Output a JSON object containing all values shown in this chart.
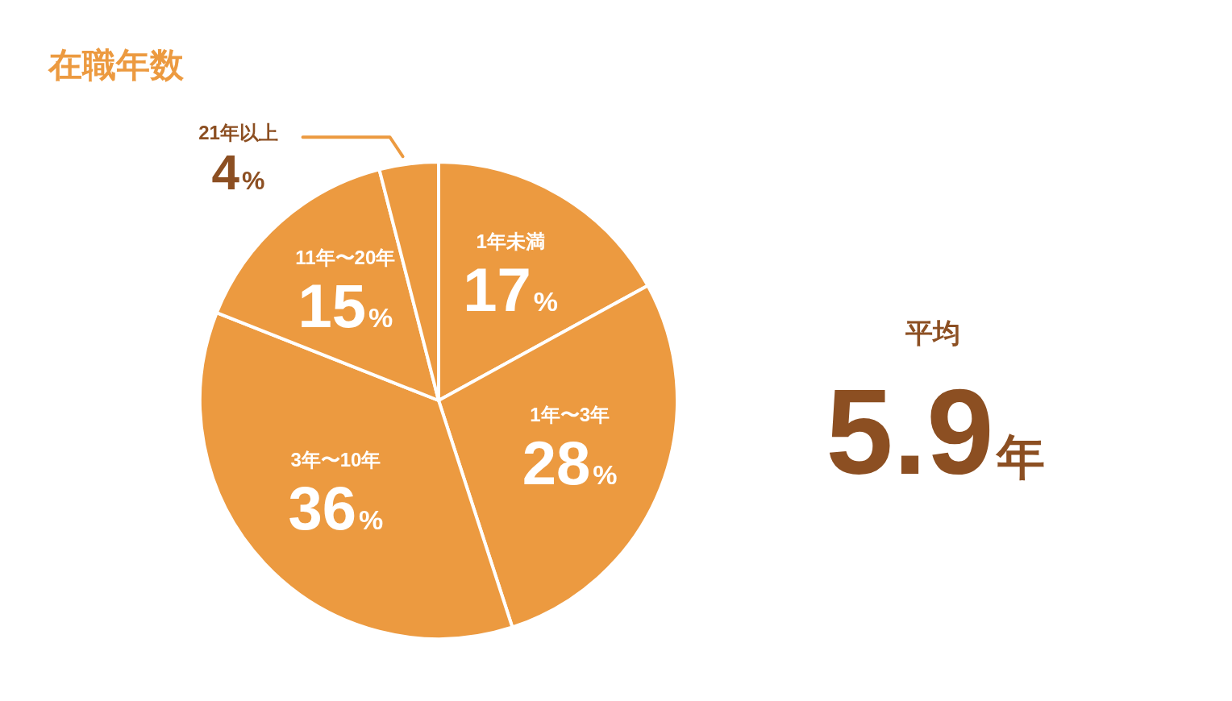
{
  "chart_data": {
    "type": "pie",
    "title": "在職年数",
    "categories": [
      "1年未満",
      "1年〜3年",
      "3年〜10年",
      "11年〜20年",
      "21年以上"
    ],
    "values": [
      17,
      28,
      36,
      15,
      4
    ],
    "colors": [
      "#ec9a40",
      "#ec9a40",
      "#ec9a40",
      "#ec9a40",
      "#ec9a40"
    ],
    "value_labels": [
      "17%",
      "28%",
      "36%",
      "15%",
      "4%"
    ],
    "annotations": [
      "平均",
      "5.9年"
    ]
  }
}
